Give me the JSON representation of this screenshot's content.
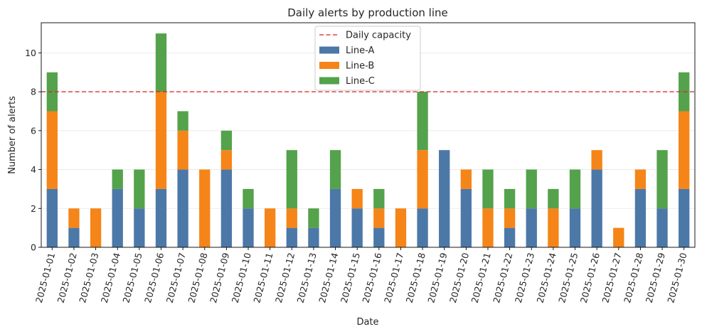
{
  "chart_data": {
    "type": "bar",
    "stacked": true,
    "title": "Daily alerts by production line",
    "xlabel": "Date",
    "ylabel": "Number of alerts",
    "categories": [
      "2025-01-01",
      "2025-01-02",
      "2025-01-03",
      "2025-01-04",
      "2025-01-05",
      "2025-01-06",
      "2025-01-07",
      "2025-01-08",
      "2025-01-09",
      "2025-01-10",
      "2025-01-11",
      "2025-01-12",
      "2025-01-13",
      "2025-01-14",
      "2025-01-15",
      "2025-01-16",
      "2025-01-17",
      "2025-01-18",
      "2025-01-19",
      "2025-01-20",
      "2025-01-21",
      "2025-01-22",
      "2025-01-23",
      "2025-01-24",
      "2025-01-25",
      "2025-01-26",
      "2025-01-27",
      "2025-01-28",
      "2025-01-29",
      "2025-01-30"
    ],
    "series": [
      {
        "name": "Line-A",
        "color": "#4c78a8",
        "values": [
          3,
          1,
          0,
          3,
          2,
          3,
          4,
          0,
          4,
          2,
          0,
          1,
          1,
          3,
          2,
          1,
          0,
          2,
          5,
          3,
          0,
          1,
          2,
          0,
          2,
          4,
          0,
          3,
          2,
          3
        ]
      },
      {
        "name": "Line-B",
        "color": "#f58518",
        "values": [
          4,
          1,
          2,
          0,
          0,
          5,
          2,
          4,
          1,
          0,
          2,
          1,
          0,
          0,
          1,
          1,
          2,
          3,
          0,
          1,
          2,
          1,
          0,
          2,
          0,
          1,
          1,
          1,
          0,
          4
        ]
      },
      {
        "name": "Line-C",
        "color": "#54a24b",
        "values": [
          2,
          0,
          0,
          1,
          2,
          3,
          1,
          0,
          1,
          1,
          0,
          3,
          1,
          2,
          0,
          1,
          0,
          3,
          0,
          0,
          2,
          1,
          2,
          1,
          2,
          0,
          0,
          0,
          3,
          2
        ]
      }
    ],
    "reference_line": {
      "name": "Daily capacity",
      "value": 8,
      "color": "#d62728",
      "style": "dashed"
    },
    "ylim": [
      0,
      11.55
    ],
    "yticks": [
      0,
      2,
      4,
      6,
      8,
      10
    ],
    "grid": {
      "y": true,
      "x": false
    },
    "legend": {
      "position": "top-center",
      "entries": [
        "Daily capacity",
        "Line-A",
        "Line-B",
        "Line-C"
      ]
    }
  }
}
